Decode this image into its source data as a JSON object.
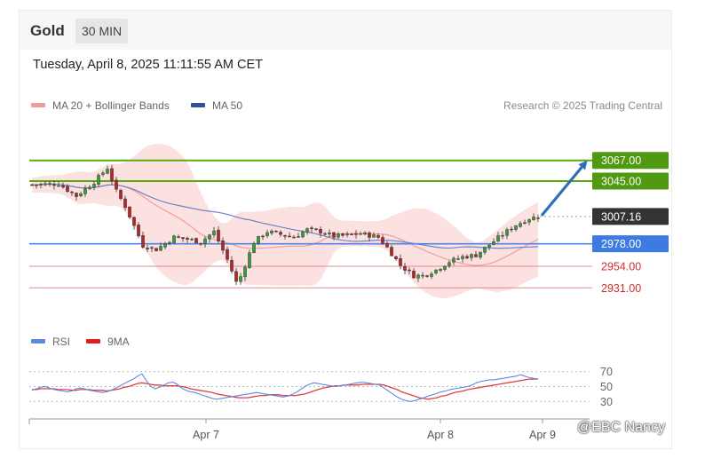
{
  "header": {
    "title": "Gold",
    "timeframe": "30 MIN",
    "datetime": "Tuesday, April 8, 2025 11:11:55 AM CET"
  },
  "legend": {
    "ma20_label": "MA 20 + Bollinger Bands",
    "ma50_label": "MA 50",
    "credit": "Research © 2025 Trading Central"
  },
  "rsi_legend": {
    "rsi_label": "RSI",
    "ma9_label": "9MA"
  },
  "watermark": "@EBC Nancy",
  "colors": {
    "support_blue": "#4a86e8",
    "resistance_green": "#5aaa0f",
    "target_red": "#e06060",
    "current_dark": "#333333",
    "ma20": "#f29b9b",
    "ma50": "#6f83c7",
    "band_fill": "#fbd9d9",
    "candle_up": "#3b9a3b",
    "candle_down": "#b02828",
    "arrow": "#2f6fb5",
    "rsi_line": "#5b8be0",
    "rsi_ma": "#e04040"
  },
  "chart_data": [
    {
      "type": "candlestick",
      "title": "Gold",
      "ylim": [
        2918,
        3098
      ],
      "x_ticks": [
        "Apr 7",
        "Apr 8",
        "Apr 9"
      ],
      "legend_placement": "top-left",
      "series": [
        {
          "name": "MA 20 + Bollinger Bands"
        },
        {
          "name": "MA 50"
        }
      ],
      "price_path": [
        {
          "bar": 0,
          "price": 3041
        },
        {
          "bar": 6,
          "price": 3042
        },
        {
          "bar": 10,
          "price": 3029
        },
        {
          "bar": 14,
          "price": 3044
        },
        {
          "bar": 17,
          "price": 3059
        },
        {
          "bar": 19,
          "price": 3034
        },
        {
          "bar": 21,
          "price": 3018
        },
        {
          "bar": 23,
          "price": 2997
        },
        {
          "bar": 25,
          "price": 2976
        },
        {
          "bar": 28,
          "price": 2972
        },
        {
          "bar": 32,
          "price": 2985
        },
        {
          "bar": 35,
          "price": 2983
        },
        {
          "bar": 38,
          "price": 2980
        },
        {
          "bar": 41,
          "price": 2991
        },
        {
          "bar": 44,
          "price": 2961
        },
        {
          "bar": 46,
          "price": 2937
        },
        {
          "bar": 47,
          "price": 2943
        },
        {
          "bar": 50,
          "price": 2980
        },
        {
          "bar": 53,
          "price": 2991
        },
        {
          "bar": 56,
          "price": 2988
        },
        {
          "bar": 59,
          "price": 2985
        },
        {
          "bar": 62,
          "price": 2993
        },
        {
          "bar": 65,
          "price": 2991
        },
        {
          "bar": 68,
          "price": 2986
        },
        {
          "bar": 71,
          "price": 2987
        },
        {
          "bar": 74,
          "price": 2989
        },
        {
          "bar": 78,
          "price": 2985
        },
        {
          "bar": 80,
          "price": 2974
        },
        {
          "bar": 83,
          "price": 2955
        },
        {
          "bar": 86,
          "price": 2944
        },
        {
          "bar": 88,
          "price": 2944
        },
        {
          "bar": 91,
          "price": 2950
        },
        {
          "bar": 94,
          "price": 2959
        },
        {
          "bar": 97,
          "price": 2964
        },
        {
          "bar": 100,
          "price": 2966
        },
        {
          "bar": 103,
          "price": 2977
        },
        {
          "bar": 106,
          "price": 2988
        },
        {
          "bar": 109,
          "price": 2998
        },
        {
          "bar": 112,
          "price": 3005
        },
        {
          "bar": 114,
          "price": 3007
        }
      ],
      "levels": [
        {
          "label": "3067.00",
          "value": 3067,
          "kind": "resistance"
        },
        {
          "label": "3045.00",
          "value": 3045,
          "kind": "resistance"
        },
        {
          "label": "3007.16",
          "value": 3007.16,
          "kind": "current"
        },
        {
          "label": "2978.00",
          "value": 2978,
          "kind": "support"
        },
        {
          "label": "2954.00",
          "value": 2954,
          "kind": "target"
        },
        {
          "label": "2931.00",
          "value": 2931,
          "kind": "target"
        }
      ],
      "forecast_arrow": {
        "from": 3007.16,
        "to": 3067
      }
    },
    {
      "type": "line",
      "title": "RSI",
      "ylim": [
        22,
        78
      ],
      "yticks": [
        "70",
        "50",
        "30"
      ],
      "series": [
        {
          "name": "RSI",
          "values": [
            45,
            47,
            49,
            50,
            48,
            46,
            45,
            44,
            43,
            44,
            47,
            48,
            47,
            45,
            44,
            43,
            42,
            43,
            45,
            48,
            51,
            54,
            57,
            60,
            64,
            67,
            58,
            50,
            47,
            49,
            52,
            55,
            56,
            53,
            48,
            45,
            43,
            42,
            40,
            38,
            36,
            34,
            33,
            34,
            35,
            36,
            37,
            38,
            39,
            40,
            41,
            42,
            41,
            40,
            39,
            38,
            37,
            36,
            37,
            39,
            42,
            46,
            50,
            53,
            55,
            54,
            53,
            52,
            51,
            50,
            51,
            52,
            53,
            54,
            55,
            56,
            55,
            54,
            53,
            52,
            48,
            44,
            40,
            36,
            33,
            31,
            30,
            31,
            33,
            35,
            37,
            39,
            41,
            43,
            44,
            46,
            47,
            48,
            49,
            50,
            52,
            55,
            57,
            58,
            59,
            59,
            60,
            61,
            62,
            63,
            64,
            66,
            64,
            62,
            61,
            60
          ]
        },
        {
          "name": "9MA",
          "values": [
            46,
            46,
            47,
            47,
            47,
            47,
            46,
            46,
            46,
            45,
            45,
            46,
            46,
            46,
            45,
            45,
            45,
            44,
            45,
            46,
            47,
            49,
            50,
            52,
            54,
            55,
            54,
            53,
            52,
            52,
            51,
            51,
            51,
            51,
            50,
            49,
            47,
            46,
            45,
            44,
            43,
            42,
            40,
            39,
            38,
            37,
            36,
            35,
            35,
            35,
            36,
            37,
            38,
            38,
            39,
            39,
            39,
            38,
            38,
            38,
            38,
            39,
            40,
            42,
            44,
            46,
            48,
            49,
            50,
            51,
            51,
            52,
            52,
            52,
            52,
            53,
            53,
            53,
            53,
            53,
            52,
            50,
            48,
            46,
            43,
            41,
            39,
            37,
            35,
            34,
            33,
            34,
            35,
            37,
            38,
            40,
            42,
            43,
            44,
            46,
            47,
            48,
            49,
            50,
            51,
            52,
            53,
            54,
            55,
            56,
            57,
            58,
            59,
            60,
            60,
            60
          ]
        }
      ]
    }
  ]
}
